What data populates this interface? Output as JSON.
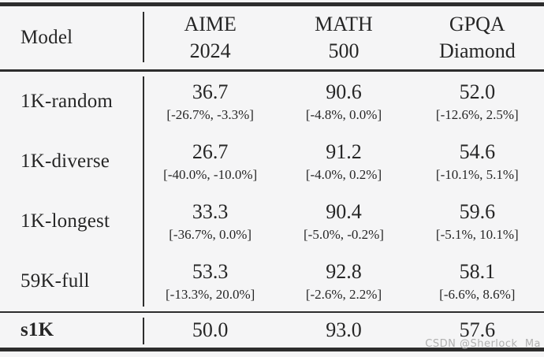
{
  "colors": {
    "background": "#f5f5f6",
    "rule": "#2d2d2d",
    "text": "#262626",
    "watermark_text": "#b0b0b0"
  },
  "table": {
    "header": {
      "model": "Model",
      "columns": [
        {
          "line1": "AIME",
          "line2": "2024"
        },
        {
          "line1": "MATH",
          "line2": "500"
        },
        {
          "line1": "GPQA",
          "line2": "Diamond"
        }
      ]
    },
    "rows": [
      {
        "model": "1K-random",
        "cells": [
          {
            "score": "36.7",
            "ci": "[-26.7%, -3.3%]"
          },
          {
            "score": "90.6",
            "ci": "[-4.8%, 0.0%]"
          },
          {
            "score": "52.0",
            "ci": "[-12.6%, 2.5%]"
          }
        ]
      },
      {
        "model": "1K-diverse",
        "cells": [
          {
            "score": "26.7",
            "ci": "[-40.0%, -10.0%]"
          },
          {
            "score": "91.2",
            "ci": "[-4.0%, 0.2%]"
          },
          {
            "score": "54.6",
            "ci": "[-10.1%, 5.1%]"
          }
        ]
      },
      {
        "model": "1K-longest",
        "cells": [
          {
            "score": "33.3",
            "ci": "[-36.7%, 0.0%]"
          },
          {
            "score": "90.4",
            "ci": "[-5.0%, -0.2%]"
          },
          {
            "score": "59.6",
            "ci": "[-5.1%, 10.1%]"
          }
        ]
      },
      {
        "model": "59K-full",
        "cells": [
          {
            "score": "53.3",
            "ci": "[-13.3%, 20.0%]"
          },
          {
            "score": "92.8",
            "ci": "[-2.6%, 2.2%]"
          },
          {
            "score": "58.1",
            "ci": "[-6.6%, 8.6%]"
          }
        ]
      }
    ],
    "footer_row": {
      "model": "s1K",
      "cells": [
        {
          "score": "50.0"
        },
        {
          "score": "93.0"
        },
        {
          "score": "57.6"
        }
      ]
    }
  },
  "watermark": "CSDN @Sherlock  Ma"
}
